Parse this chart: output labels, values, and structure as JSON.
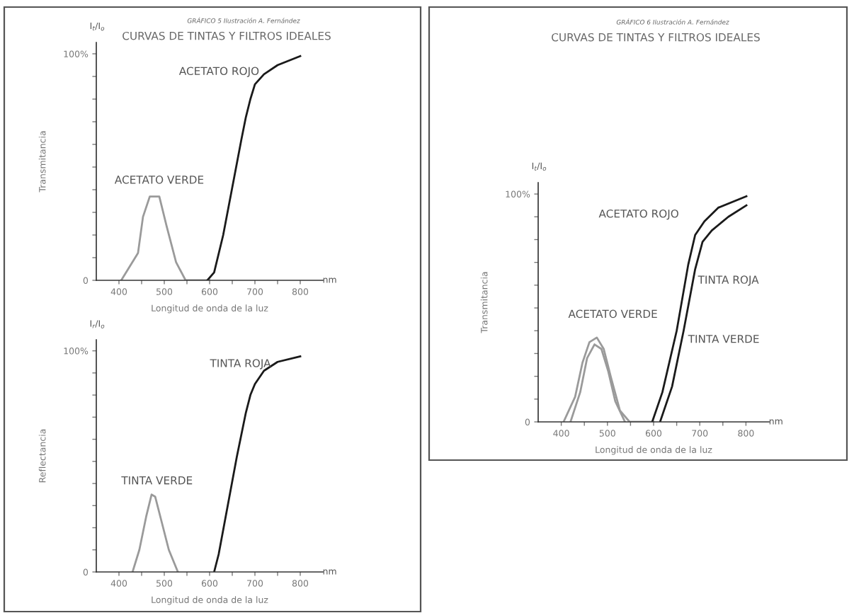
{
  "chart_data": [
    {
      "type": "line",
      "title": "CURVAS DE TINTAS Y FILTROS IDEALES",
      "subtitle": "GRÁFICO 5 Ilustración A. Fernández",
      "xlabel": "Longitud de onda de la luz",
      "ylabel": "Transmitancia",
      "xlim": [
        350,
        850
      ],
      "ylim": [
        0,
        105
      ],
      "xticks": [
        400,
        {
          "value": 450,
          "label": null
        },
        500,
        {
          "value": 550,
          "label": null
        },
        600,
        {
          "value": 650,
          "label": null
        },
        700,
        {
          "value": 750,
          "label": null
        },
        800
      ],
      "yticks": [
        {
          "value": 0,
          "label": "0"
        },
        {
          "value": 10,
          "label": null
        },
        {
          "value": 20,
          "label": null
        },
        {
          "value": 30,
          "label": null
        },
        {
          "value": 40,
          "label": null
        },
        {
          "value": 50,
          "label": null
        },
        {
          "value": 60,
          "label": null
        },
        {
          "value": 70,
          "label": null
        },
        {
          "value": 80,
          "label": null
        },
        {
          "value": 90,
          "label": null
        },
        {
          "value": 100,
          "label": "100%"
        }
      ],
      "grid": false,
      "legend": false,
      "series": [
        {
          "color": "#9a9a9a",
          "x": [
            405,
            442,
            453,
            468,
            489,
            505,
            526,
            547,
            600
          ],
          "values": [
            0,
            12,
            28,
            37,
            37,
            24,
            8,
            0,
            0
          ]
        },
        {
          "color": "#1a1a1a",
          "x": [
            595,
            610,
            630,
            650,
            670,
            680,
            690,
            700,
            720,
            750,
            800
          ],
          "values": [
            0,
            3.5,
            20,
            41,
            62,
            72,
            80,
            86.5,
            91,
            95,
            99
          ]
        }
      ],
      "annotations": [
        "ACETATO ROJO",
        "ACETATO VERDE",
        "I$_{t}$/I$_{o}$",
        "nm"
      ]
    },
    {
      "type": "line",
      "xlabel": "Longitud de onda de la luz",
      "ylabel": "Reflectancia",
      "xlim": [
        350,
        850
      ],
      "ylim": [
        0,
        105
      ],
      "xticks": [
        400,
        {
          "value": 450,
          "label": null
        },
        500,
        {
          "value": 550,
          "label": null
        },
        600,
        {
          "value": 650,
          "label": null
        },
        700,
        {
          "value": 750,
          "label": null
        },
        800
      ],
      "yticks": [
        {
          "value": 0,
          "label": "0"
        },
        {
          "value": 10,
          "label": null
        },
        {
          "value": 20,
          "label": null
        },
        {
          "value": 30,
          "label": null
        },
        {
          "value": 40,
          "label": null
        },
        {
          "value": 50,
          "label": null
        },
        {
          "value": 60,
          "label": null
        },
        {
          "value": 70,
          "label": null
        },
        {
          "value": 80,
          "label": null
        },
        {
          "value": 90,
          "label": null
        },
        {
          "value": 100,
          "label": "100%"
        }
      ],
      "grid": false,
      "legend": false,
      "series": [
        {
          "color": "#9a9a9a",
          "x": [
            430,
            445,
            460,
            472,
            480,
            495,
            510,
            530
          ],
          "values": [
            0,
            10,
            25,
            35,
            34,
            22,
            10,
            0
          ]
        },
        {
          "color": "#1a1a1a",
          "x": [
            610,
            620,
            640,
            660,
            680,
            690,
            700,
            720,
            750,
            800
          ],
          "values": [
            0,
            8,
            30,
            52,
            72,
            80,
            85,
            91,
            95,
            97.5
          ]
        }
      ],
      "annotations": [
        "TINTA ROJA",
        "TINTA VERDE",
        "I$_{r}$/I$_{o}$",
        "nm"
      ]
    },
    {
      "type": "line",
      "title": "CURVAS DE TINTAS Y FILTROS IDEALES",
      "subtitle": "GRÁFICO 6 Ilustración A. Fernández",
      "xlabel": "Longitud de onda de la luz",
      "ylabel": "Transmitancia",
      "xlim": [
        350,
        850
      ],
      "ylim": [
        0,
        105
      ],
      "xticks": [
        400,
        {
          "value": 450,
          "label": null
        },
        500,
        {
          "value": 550,
          "label": null
        },
        600,
        {
          "value": 650,
          "label": null
        },
        700,
        {
          "value": 750,
          "label": null
        },
        800
      ],
      "yticks": [
        {
          "value": 0,
          "label": "0"
        },
        {
          "value": 10,
          "label": null
        },
        {
          "value": 20,
          "label": null
        },
        {
          "value": 30,
          "label": null
        },
        {
          "value": 40,
          "label": null
        },
        {
          "value": 50,
          "label": null
        },
        {
          "value": 60,
          "label": null
        },
        {
          "value": 70,
          "label": null
        },
        {
          "value": 80,
          "label": null
        },
        {
          "value": 90,
          "label": null
        },
        {
          "value": 100,
          "label": "100%"
        }
      ],
      "grid": false,
      "legend": false,
      "series": [
        {
          "color": "#9a9a9a",
          "x": [
            405,
            430,
            446,
            461,
            477,
            492,
            507,
            527,
            548,
            600
          ],
          "values": [
            0,
            11,
            26,
            35,
            37,
            32,
            20,
            5,
            0,
            0
          ]
        },
        {
          "color": "#9a9a9a",
          "x": [
            420,
            441,
            456,
            472,
            487,
            502,
            517,
            538
          ],
          "values": [
            0,
            13,
            28,
            34,
            32,
            22,
            9,
            0
          ]
        },
        {
          "color": "#1a1a1a",
          "x": [
            597,
            619,
            650,
            675,
            690,
            710,
            740,
            801
          ],
          "values": [
            0,
            13,
            40,
            69,
            82,
            88,
            94,
            99
          ]
        },
        {
          "color": "#1a1a1a",
          "x": [
            614,
            640,
            665,
            690,
            706,
            726,
            762,
            801
          ],
          "values": [
            0,
            15.5,
            40,
            67,
            79,
            84,
            90,
            95
          ]
        }
      ],
      "annotations": [
        "ACETATO ROJO",
        "TINTA ROJA",
        "ACETATO VERDE",
        "TINTA VERDE",
        "I$_{t}$/I$_{o}$",
        "nm"
      ]
    }
  ]
}
